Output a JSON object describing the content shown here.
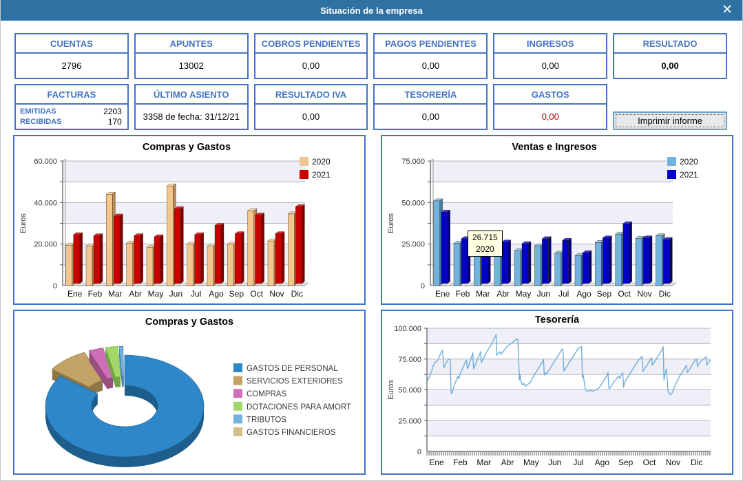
{
  "window": {
    "title": "Situación de la empresa",
    "close_glyph": "✕"
  },
  "colors": {
    "titlebar": "#2D72A3",
    "accent_blue": "#4472C4",
    "negative_red": "#C00000",
    "band_gray": "#EFEFF7",
    "button_border": "#66A1D2"
  },
  "stats": {
    "row1": [
      {
        "label": "CUENTAS",
        "value": "2796"
      },
      {
        "label": "APUNTES",
        "value": "13002"
      },
      {
        "label": "COBROS PENDIENTES",
        "value": "0,00"
      },
      {
        "label": "PAGOS PENDIENTES",
        "value": "0,00"
      },
      {
        "label": "INGRESOS",
        "value": "0,00"
      },
      {
        "label": "RESULTADO",
        "value": "0,00"
      }
    ],
    "facturas": {
      "label": "FACTURAS",
      "rows": [
        {
          "label": "EMITIDAS",
          "value": "2203"
        },
        {
          "label": "RECIBIDAS",
          "value": "170"
        }
      ]
    },
    "row2": [
      {
        "label": "ÚLTIMO ASIENTO",
        "value": "3358 de fecha: 31/12/21"
      },
      {
        "label": "RESULTADO IVA",
        "value": "0,00"
      },
      {
        "label": "TESORERÍA",
        "value": "0,00"
      },
      {
        "label": "GASTOS",
        "value": "0,00",
        "value_color": "#C00000"
      }
    ],
    "print_button": "Imprimir informe"
  },
  "chart_data": [
    {
      "type": "bar",
      "title": "Compras y Gastos",
      "ylabel": "Euros",
      "ylim": [
        0,
        60000
      ],
      "ytick": 20000,
      "grid": 10000,
      "legend_position": "top-right",
      "categories": [
        "Ene",
        "Feb",
        "Mar",
        "Abr",
        "May",
        "Jun",
        "Jul",
        "Ago",
        "Sep",
        "Oct",
        "Nov",
        "Dic"
      ],
      "series": [
        {
          "name": "2020",
          "color": "#F2C68F",
          "side": "#B98B54",
          "top": "#F8DCB4",
          "values": [
            19500,
            19000,
            44000,
            20500,
            18500,
            48000,
            20000,
            19000,
            20000,
            36000,
            21500,
            34500
          ]
        },
        {
          "name": "2021",
          "color": "#C80000",
          "side": "#7E0000",
          "top": "#DC2A2A",
          "values": [
            23500,
            23000,
            32500,
            23000,
            22500,
            36000,
            23500,
            28000,
            24000,
            33000,
            24000,
            37000
          ]
        }
      ]
    },
    {
      "type": "bar",
      "title": "Ventas e Ingresos",
      "ylabel": "Euros",
      "ylim": [
        0,
        75000
      ],
      "ytick": 25000,
      "grid": 12500,
      "legend_position": "top-right",
      "categories": [
        "Ene",
        "Feb",
        "Mar",
        "Abr",
        "May",
        "Jun",
        "Jul",
        "Ago",
        "Sep",
        "Oct",
        "Nov",
        "Dic"
      ],
      "series": [
        {
          "name": "2020",
          "color": "#6FB3DE",
          "side": "#447FA6",
          "top": "#9CCDEA",
          "values": [
            51000,
            25500,
            26715,
            22000,
            21000,
            24000,
            19500,
            18000,
            26000,
            31000,
            28500,
            30000
          ]
        },
        {
          "name": "2021",
          "color": "#0000C8",
          "side": "#000078",
          "top": "#3333E0",
          "values": [
            43000,
            27000,
            25000,
            25000,
            24000,
            27000,
            26000,
            18500,
            27500,
            36000,
            27500,
            26500
          ]
        }
      ],
      "tooltip": {
        "value": "26.715",
        "series": "2020",
        "category": "Mar"
      }
    },
    {
      "type": "pie",
      "title": "Compras y Gastos",
      "legend_position": "right",
      "donut": true,
      "slices": [
        {
          "label": "GASTOS DE PERSONAL",
          "color": "#2E87C8",
          "dark": "#1F5E8C",
          "value": 85
        },
        {
          "label": "SERVICIOS EXTERIORES",
          "color": "#C3A366",
          "dark": "#8F7747",
          "value": 8.5
        },
        {
          "label": "COMPRAS",
          "color": "#CE6FB7",
          "dark": "#96507F",
          "value": 3
        },
        {
          "label": "DOTACIONES PARA AMORT",
          "color": "#A2D868",
          "dark": "#74A34A",
          "value": 2.5
        },
        {
          "label": "TRIBUTOS",
          "color": "#6FB3DE",
          "dark": "#4F81A3",
          "value": 0.8
        },
        {
          "label": "GASTOS FINANCIEROS",
          "color": "#D2C088",
          "dark": "#9C8F61",
          "value": 0.2
        }
      ]
    },
    {
      "type": "line",
      "title": "Tesorería",
      "ylabel": "Euros",
      "color": "#6FAEDB",
      "ylim": [
        0,
        100000
      ],
      "ytick": 25000,
      "grid": 12500,
      "point_scale": 1000,
      "x_span_days": 365,
      "categories": [
        "Ene",
        "Feb",
        "Mar",
        "Abr",
        "May",
        "Jun",
        "Jul",
        "Ago",
        "Sep",
        "Oct",
        "Nov",
        "Dic"
      ],
      "points": [
        [
          0,
          57
        ],
        [
          2,
          59
        ],
        [
          4,
          62
        ],
        [
          6,
          65
        ],
        [
          8,
          69
        ],
        [
          10,
          72
        ],
        [
          12,
          73
        ],
        [
          14,
          74
        ],
        [
          16,
          77
        ],
        [
          18,
          80
        ],
        [
          20,
          82
        ],
        [
          21,
          75
        ],
        [
          22,
          68
        ],
        [
          24,
          71
        ],
        [
          26,
          73
        ],
        [
          28,
          75
        ],
        [
          30,
          75
        ],
        [
          31,
          48
        ],
        [
          32,
          47
        ],
        [
          34,
          51
        ],
        [
          36,
          55
        ],
        [
          38,
          58
        ],
        [
          40,
          61
        ],
        [
          41,
          59
        ],
        [
          43,
          63
        ],
        [
          45,
          66
        ],
        [
          47,
          69
        ],
        [
          49,
          72
        ],
        [
          51,
          74
        ],
        [
          52,
          67
        ],
        [
          54,
          70
        ],
        [
          56,
          74
        ],
        [
          58,
          78
        ],
        [
          59,
          80
        ],
        [
          60,
          67
        ],
        [
          62,
          70
        ],
        [
          64,
          73
        ],
        [
          66,
          76
        ],
        [
          68,
          79
        ],
        [
          69,
          81
        ],
        [
          70,
          72
        ],
        [
          72,
          75
        ],
        [
          74,
          77
        ],
        [
          76,
          80
        ],
        [
          78,
          82
        ],
        [
          80,
          84
        ],
        [
          82,
          86
        ],
        [
          84,
          88
        ],
        [
          86,
          91
        ],
        [
          88,
          93
        ],
        [
          89,
          95
        ],
        [
          90,
          78
        ],
        [
          92,
          80
        ],
        [
          94,
          81
        ],
        [
          95,
          79
        ],
        [
          97,
          80
        ],
        [
          99,
          82
        ],
        [
          101,
          83
        ],
        [
          103,
          85
        ],
        [
          105,
          86
        ],
        [
          107,
          87
        ],
        [
          109,
          88
        ],
        [
          111,
          89
        ],
        [
          113,
          90
        ],
        [
          115,
          91
        ],
        [
          117,
          91
        ],
        [
          119,
          58
        ],
        [
          120,
          62
        ],
        [
          121,
          57
        ],
        [
          123,
          54
        ],
        [
          125,
          55
        ],
        [
          127,
          53
        ],
        [
          129,
          54
        ],
        [
          131,
          55
        ],
        [
          133,
          56
        ],
        [
          135,
          58
        ],
        [
          137,
          61
        ],
        [
          139,
          63
        ],
        [
          141,
          65
        ],
        [
          143,
          67
        ],
        [
          145,
          69
        ],
        [
          147,
          71
        ],
        [
          149,
          73
        ],
        [
          150,
          75
        ],
        [
          151,
          62
        ],
        [
          153,
          64
        ],
        [
          154,
          63
        ],
        [
          156,
          65
        ],
        [
          158,
          67
        ],
        [
          160,
          69
        ],
        [
          162,
          71
        ],
        [
          164,
          73
        ],
        [
          166,
          75
        ],
        [
          168,
          77
        ],
        [
          170,
          79
        ],
        [
          172,
          81
        ],
        [
          174,
          83
        ],
        [
          175,
          83
        ],
        [
          176,
          65
        ],
        [
          178,
          67
        ],
        [
          180,
          69
        ],
        [
          182,
          71
        ],
        [
          184,
          73
        ],
        [
          186,
          75
        ],
        [
          188,
          77
        ],
        [
          190,
          79
        ],
        [
          192,
          81
        ],
        [
          194,
          83
        ],
        [
          196,
          84
        ],
        [
          198,
          85
        ],
        [
          199,
          85
        ],
        [
          200,
          60
        ],
        [
          201,
          62
        ],
        [
          202,
          58
        ],
        [
          204,
          50
        ],
        [
          206,
          49
        ],
        [
          208,
          49
        ],
        [
          210,
          50
        ],
        [
          212,
          49
        ],
        [
          214,
          49
        ],
        [
          216,
          50
        ],
        [
          218,
          50
        ],
        [
          220,
          51
        ],
        [
          222,
          52
        ],
        [
          224,
          54
        ],
        [
          226,
          56
        ],
        [
          228,
          58
        ],
        [
          230,
          60
        ],
        [
          232,
          62
        ],
        [
          233,
          64
        ],
        [
          234,
          52
        ],
        [
          235,
          51
        ],
        [
          237,
          53
        ],
        [
          239,
          55
        ],
        [
          241,
          57
        ],
        [
          243,
          58
        ],
        [
          245,
          60
        ],
        [
          247,
          61
        ],
        [
          248,
          59
        ],
        [
          250,
          62
        ],
        [
          252,
          64
        ],
        [
          253,
          52
        ],
        [
          254,
          55
        ],
        [
          256,
          58
        ],
        [
          258,
          60
        ],
        [
          260,
          62
        ],
        [
          262,
          64
        ],
        [
          264,
          66
        ],
        [
          266,
          68
        ],
        [
          268,
          70
        ],
        [
          270,
          72
        ],
        [
          272,
          74
        ],
        [
          274,
          75
        ],
        [
          276,
          77
        ],
        [
          277,
          77
        ],
        [
          278,
          65
        ],
        [
          280,
          67
        ],
        [
          282,
          69
        ],
        [
          284,
          71
        ],
        [
          286,
          73
        ],
        [
          288,
          75
        ],
        [
          289,
          76
        ],
        [
          290,
          70
        ],
        [
          292,
          72
        ],
        [
          294,
          74
        ],
        [
          296,
          76
        ],
        [
          298,
          78
        ],
        [
          300,
          80
        ],
        [
          302,
          82
        ],
        [
          304,
          85
        ],
        [
          305,
          58
        ],
        [
          306,
          62
        ],
        [
          307,
          65
        ],
        [
          308,
          67
        ],
        [
          309,
          60
        ],
        [
          310,
          50
        ],
        [
          311,
          48
        ],
        [
          313,
          46
        ],
        [
          315,
          47
        ],
        [
          317,
          50
        ],
        [
          319,
          53
        ],
        [
          321,
          56
        ],
        [
          323,
          58
        ],
        [
          325,
          61
        ],
        [
          327,
          63
        ],
        [
          329,
          65
        ],
        [
          331,
          67
        ],
        [
          333,
          69
        ],
        [
          334,
          70
        ],
        [
          335,
          64
        ],
        [
          337,
          66
        ],
        [
          339,
          68
        ],
        [
          341,
          70
        ],
        [
          343,
          72
        ],
        [
          345,
          74
        ],
        [
          347,
          75
        ],
        [
          348,
          69
        ],
        [
          350,
          71
        ],
        [
          352,
          73
        ],
        [
          354,
          74
        ],
        [
          356,
          75
        ],
        [
          358,
          76
        ],
        [
          359,
          77
        ],
        [
          360,
          70
        ],
        [
          362,
          72
        ],
        [
          364,
          74
        ],
        [
          365,
          73
        ]
      ]
    }
  ]
}
